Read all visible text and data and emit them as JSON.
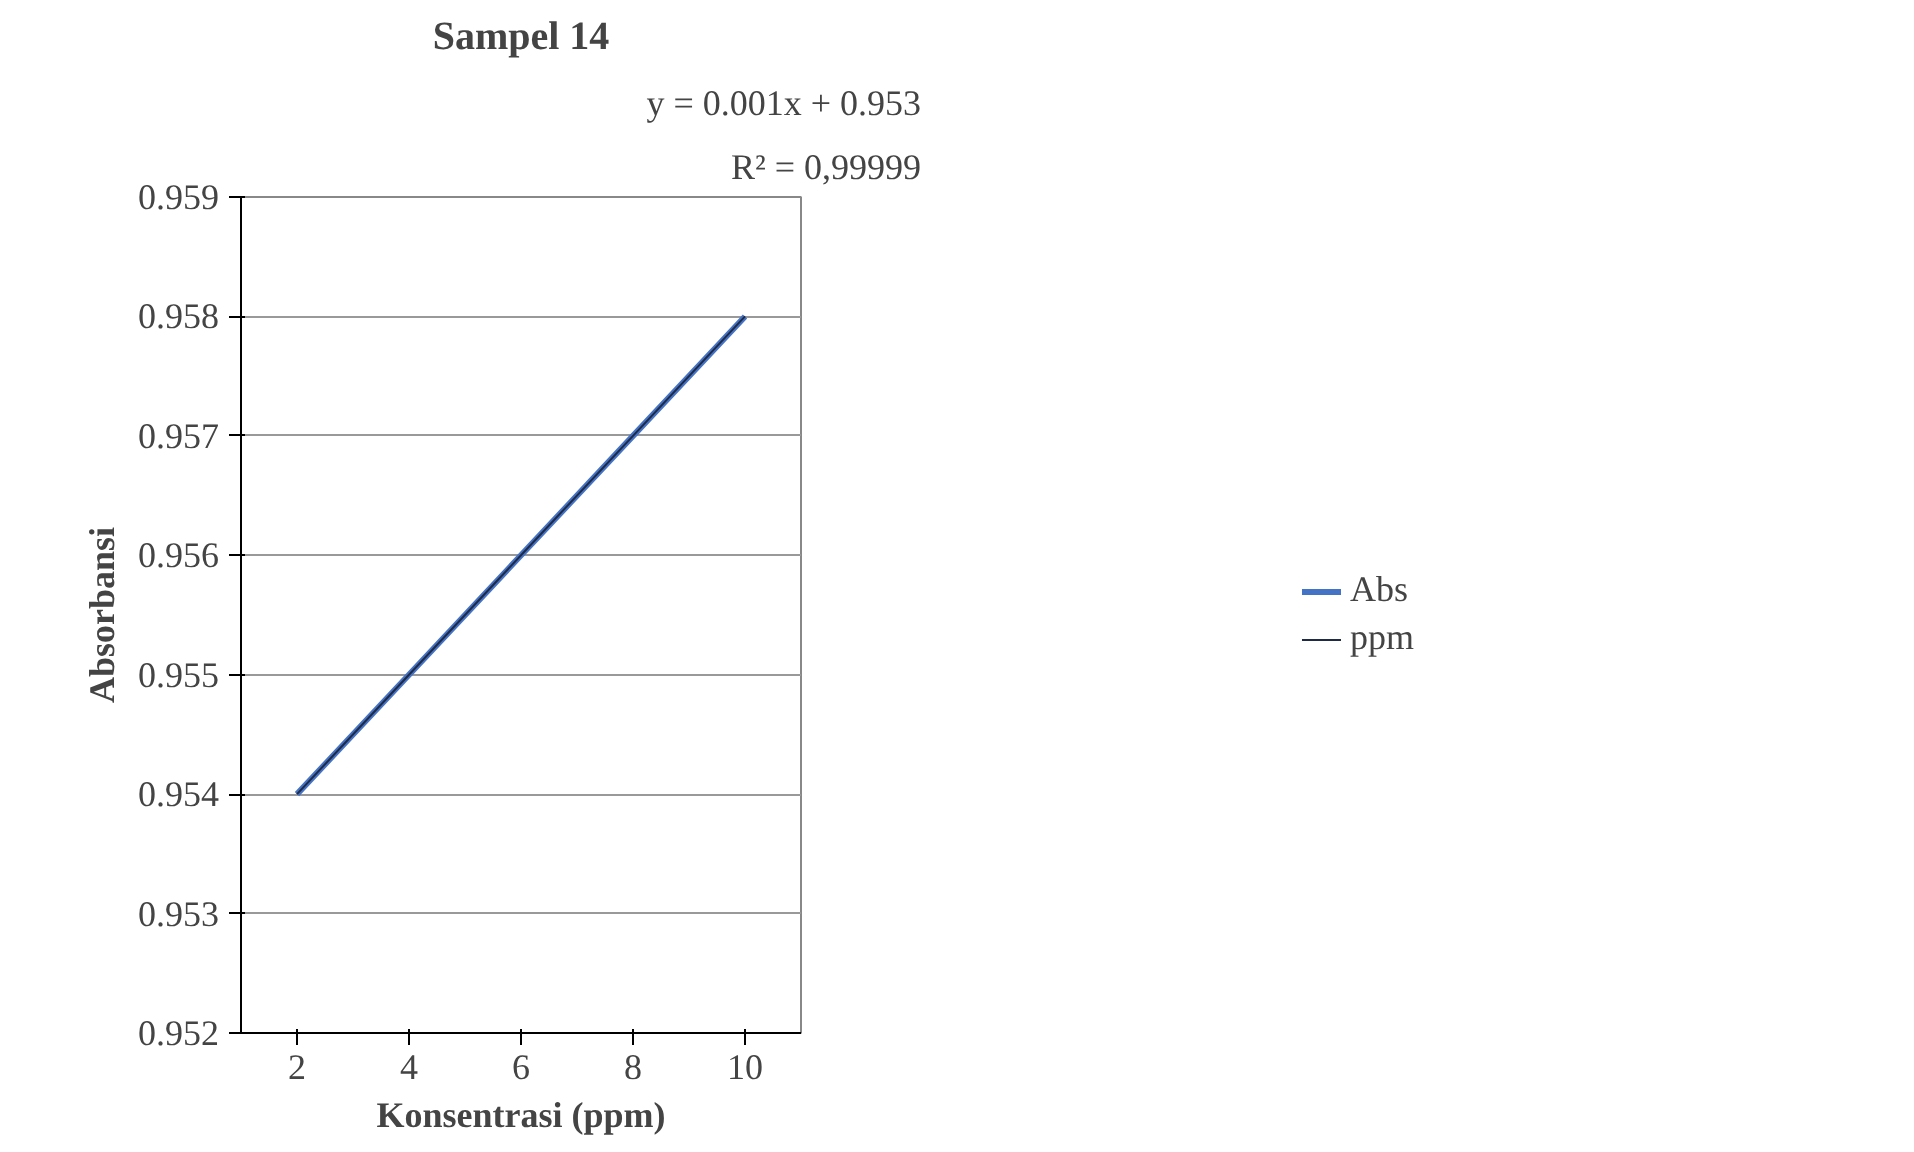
{
  "chart_data": {
    "type": "line",
    "title": "Sampel 14",
    "xlabel": "Konsentrasi (ppm)",
    "ylabel": "Absorbansi",
    "categories": [
      "2",
      "4",
      "6",
      "8",
      "10"
    ],
    "series": [
      {
        "name": "Abs",
        "color": "#4472c4",
        "values": [
          0.954,
          0.955,
          0.956,
          0.957,
          0.958
        ]
      },
      {
        "name": "ppm",
        "color": "#1f2a44",
        "values": [
          0.954,
          0.955,
          0.956,
          0.957,
          0.958
        ]
      }
    ],
    "ylim": [
      0.952,
      0.959
    ],
    "yticks": [
      0.952,
      0.953,
      0.954,
      0.955,
      0.956,
      0.957,
      0.958,
      0.959
    ],
    "grid": "y",
    "legend": "right",
    "marker": "none",
    "line_style": "solid",
    "annotations": [
      "y = 0.001x + 0.953",
      "R² = 0,99999"
    ]
  }
}
